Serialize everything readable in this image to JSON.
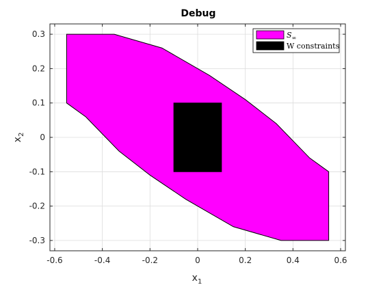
{
  "chart_data": {
    "type": "area",
    "title": "Debug",
    "xlabel": "x",
    "xlabel_sub": "1",
    "ylabel": "x",
    "ylabel_sub": "2",
    "xlim": [
      -0.62,
      0.62
    ],
    "ylim": [
      -0.33,
      0.33
    ],
    "xticks": [
      -0.6,
      -0.4,
      -0.2,
      0,
      0.2,
      0.4,
      0.6
    ],
    "xtick_labels": [
      "-0.6",
      "-0.4",
      "-0.2",
      "0",
      "0.2",
      "0.4",
      "0.6"
    ],
    "yticks": [
      -0.3,
      -0.2,
      -0.1,
      0,
      0.1,
      0.2,
      0.3
    ],
    "ytick_labels": [
      "-0.3",
      "-0.2",
      "-0.1",
      "0",
      "0.1",
      "0.2",
      "0.3"
    ],
    "grid": true,
    "legend_position": "top-right",
    "series": [
      {
        "name": "S∞",
        "legend_main": "S",
        "legend_sub": "∞",
        "color": "#ff00ff",
        "polygon": [
          [
            -0.55,
            0.3
          ],
          [
            -0.35,
            0.3
          ],
          [
            -0.15,
            0.26
          ],
          [
            0.05,
            0.18
          ],
          [
            0.2,
            0.11
          ],
          [
            0.33,
            0.04
          ],
          [
            0.47,
            -0.06
          ],
          [
            0.55,
            -0.1
          ],
          [
            0.55,
            -0.3
          ],
          [
            0.35,
            -0.3
          ],
          [
            0.15,
            -0.26
          ],
          [
            -0.05,
            -0.18
          ],
          [
            -0.2,
            -0.11
          ],
          [
            -0.33,
            -0.04
          ],
          [
            -0.47,
            0.06
          ],
          [
            -0.55,
            0.1
          ]
        ]
      },
      {
        "name": "W constraints",
        "color": "#000000",
        "polygon": [
          [
            -0.1,
            -0.1
          ],
          [
            0.1,
            -0.1
          ],
          [
            0.1,
            0.1
          ],
          [
            -0.1,
            0.1
          ]
        ]
      }
    ]
  }
}
